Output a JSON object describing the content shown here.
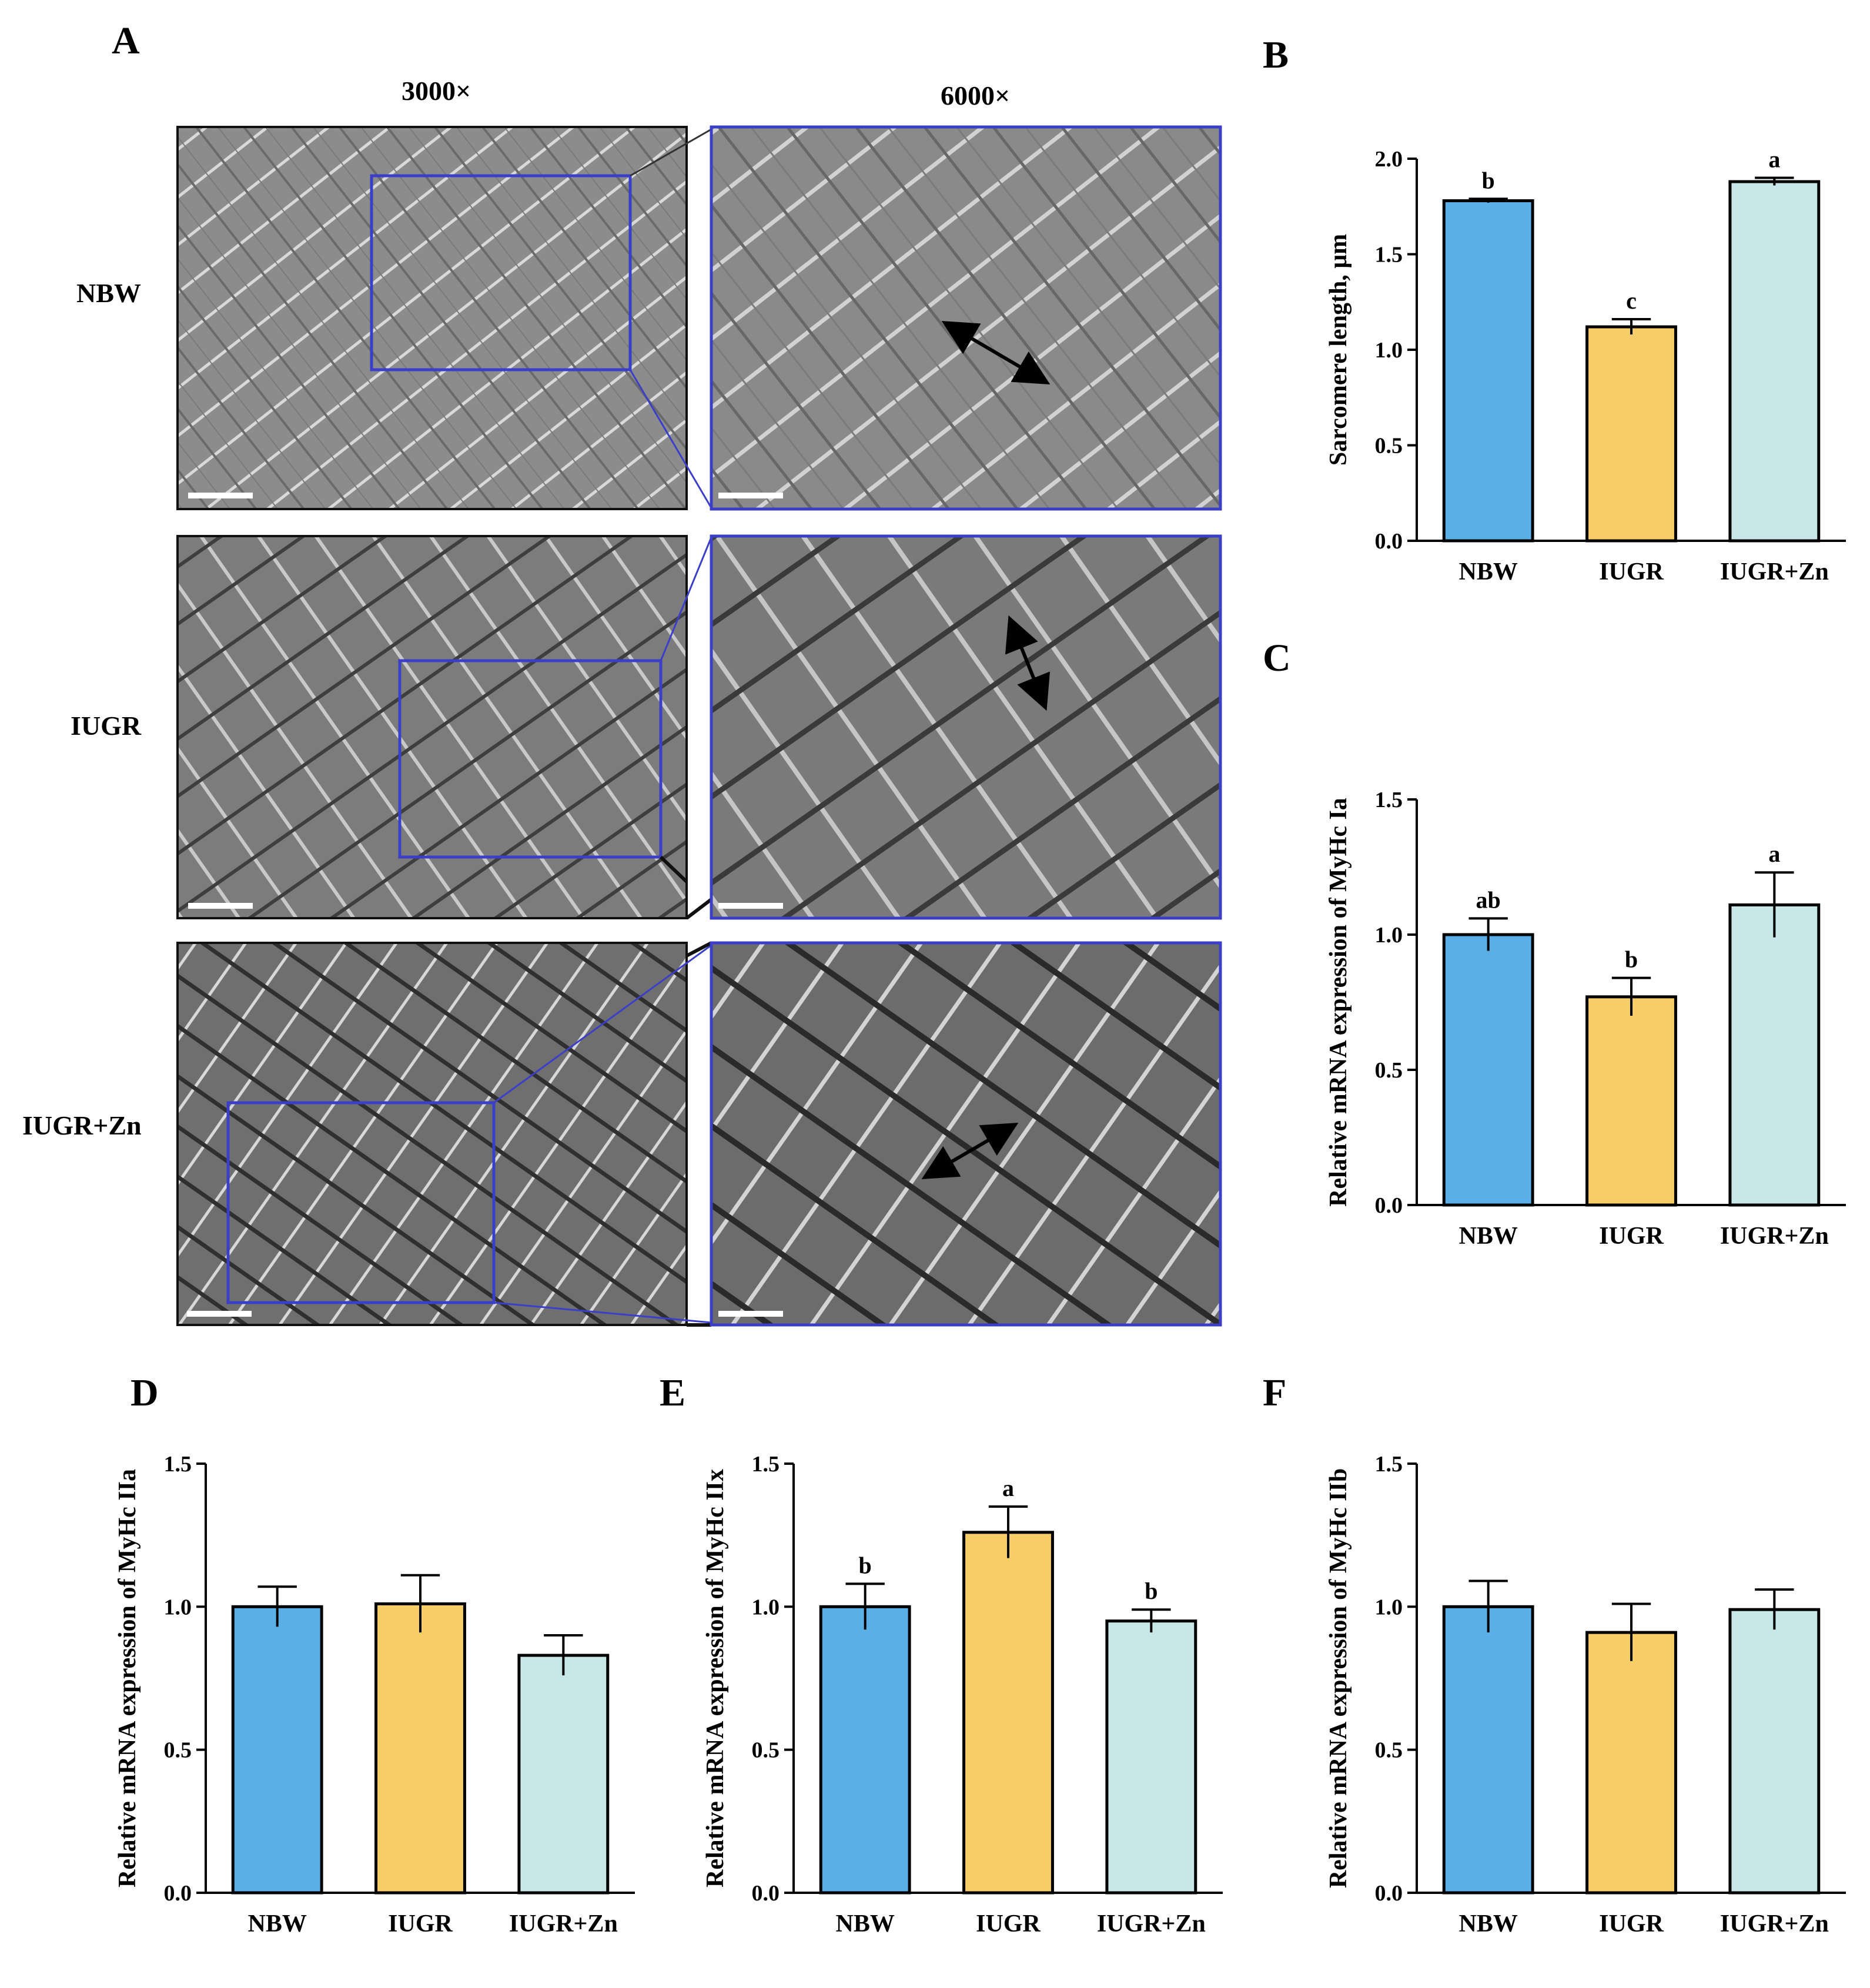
{
  "panels": {
    "A": {
      "letter": "A",
      "columns": [
        "3000×",
        "6000×"
      ],
      "rows": [
        "NBW",
        "IUGR",
        "IUGR+Zn"
      ]
    },
    "B": {
      "letter": "B"
    },
    "C": {
      "letter": "C"
    },
    "D": {
      "letter": "D"
    },
    "E": {
      "letter": "E"
    },
    "F": {
      "letter": "F"
    }
  },
  "colors": {
    "NBW": "#5aafe6",
    "IUGR": "#f7cd67",
    "IUGR+Zn": "#c8e7e8",
    "box_blue": "#3b3fc7"
  },
  "chart_data": [
    {
      "id": "B",
      "type": "bar",
      "categories": [
        "NBW",
        "IUGR",
        "IUGR+Zn"
      ],
      "values": [
        1.78,
        1.12,
        1.88
      ],
      "errors": [
        0.01,
        0.04,
        0.02
      ],
      "significance": [
        "b",
        "c",
        "a"
      ],
      "ylabel": "Sarcomere length, μm",
      "ylim": [
        0,
        2.0
      ],
      "yticks": [
        "0.0",
        "0.5",
        "1.0",
        "1.5",
        "2.0"
      ],
      "ytick_values": [
        0,
        0.5,
        1.0,
        1.5,
        2.0
      ]
    },
    {
      "id": "C",
      "type": "bar",
      "categories": [
        "NBW",
        "IUGR",
        "IUGR+Zn"
      ],
      "values": [
        1.0,
        0.77,
        1.11
      ],
      "errors": [
        0.06,
        0.07,
        0.12
      ],
      "significance": [
        "ab",
        "b",
        "a"
      ],
      "ylabel": "Relative mRNA expression of MyHc Ia",
      "ylim": [
        0,
        1.5
      ],
      "yticks": [
        "0.0",
        "0.5",
        "1.0",
        "1.5"
      ],
      "ytick_values": [
        0,
        0.5,
        1.0,
        1.5
      ]
    },
    {
      "id": "D",
      "type": "bar",
      "categories": [
        "NBW",
        "IUGR",
        "IUGR+Zn"
      ],
      "values": [
        1.0,
        1.01,
        0.83
      ],
      "errors": [
        0.07,
        0.1,
        0.07
      ],
      "significance": [
        "",
        "",
        ""
      ],
      "ylabel": "Relative mRNA expression of MyHc IIa",
      "ylim": [
        0,
        1.5
      ],
      "yticks": [
        "0.0",
        "0.5",
        "1.0",
        "1.5"
      ],
      "ytick_values": [
        0,
        0.5,
        1.0,
        1.5
      ]
    },
    {
      "id": "E",
      "type": "bar",
      "categories": [
        "NBW",
        "IUGR",
        "IUGR+Zn"
      ],
      "values": [
        1.0,
        1.26,
        0.95
      ],
      "errors": [
        0.08,
        0.09,
        0.04
      ],
      "significance": [
        "b",
        "a",
        "b"
      ],
      "ylabel": "Relative mRNA expression of MyHc IIx",
      "ylim": [
        0,
        1.5
      ],
      "yticks": [
        "0.0",
        "0.5",
        "1.0",
        "1.5"
      ],
      "ytick_values": [
        0,
        0.5,
        1.0,
        1.5
      ]
    },
    {
      "id": "F",
      "type": "bar",
      "categories": [
        "NBW",
        "IUGR",
        "IUGR+Zn"
      ],
      "values": [
        1.0,
        0.91,
        0.99
      ],
      "errors": [
        0.09,
        0.1,
        0.07
      ],
      "significance": [
        "",
        "",
        ""
      ],
      "ylabel": "Relative mRNA expression of MyHc IIb",
      "ylim": [
        0,
        1.5
      ],
      "yticks": [
        "0.0",
        "0.5",
        "1.0",
        "1.5"
      ],
      "ytick_values": [
        0,
        0.5,
        1.0,
        1.5
      ]
    }
  ]
}
